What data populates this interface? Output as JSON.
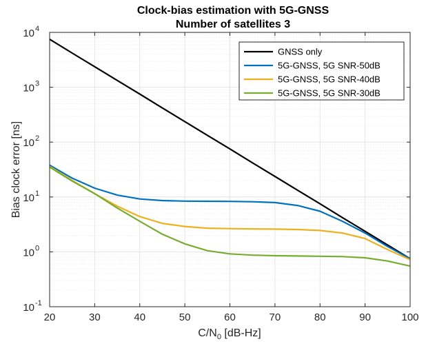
{
  "chart_data": {
    "type": "line",
    "title": "Clock-bias estimation with 5G-GNSS",
    "subtitle": "Number of satellites 3",
    "xlabel_main": "C/N",
    "xlabel_sub": "0",
    "xlabel_unit": " [dB-Hz]",
    "ylabel": "Bias clock error [ns]",
    "xlim": [
      20,
      100
    ],
    "ylim": [
      0.1,
      10000
    ],
    "yscale": "log",
    "grid": true,
    "legend_position": "top-right",
    "x_ticks": [
      20,
      30,
      40,
      50,
      60,
      70,
      80,
      90,
      100
    ],
    "y_ticks": [
      {
        "base": "10",
        "exp": "-1",
        "value": 0.1
      },
      {
        "base": "10",
        "exp": "0",
        "value": 1
      },
      {
        "base": "10",
        "exp": "1",
        "value": 10
      },
      {
        "base": "10",
        "exp": "2",
        "value": 100
      },
      {
        "base": "10",
        "exp": "3",
        "value": 1000
      },
      {
        "base": "10",
        "exp": "4",
        "value": 10000
      }
    ],
    "x": [
      20,
      25,
      30,
      35,
      40,
      45,
      50,
      55,
      60,
      65,
      70,
      75,
      80,
      85,
      90,
      95,
      100
    ],
    "series": [
      {
        "name": "GNSS only",
        "color": "#000000",
        "values": [
          7500,
          4200,
          2370,
          1330,
          750,
          420,
          237,
          133,
          75,
          42,
          23.7,
          13.3,
          7.5,
          4.2,
          2.37,
          1.33,
          0.75
        ]
      },
      {
        "name": "5G-GNSS, 5G SNR-50dB",
        "color": "#0072BD",
        "values": [
          38,
          22,
          14.5,
          10.8,
          9.2,
          8.6,
          8.4,
          8.35,
          8.3,
          8.2,
          7.9,
          7.0,
          5.5,
          3.6,
          2.2,
          1.25,
          0.75
        ]
      },
      {
        "name": "5G-GNSS, 5G SNR-40dB",
        "color": "#EDB120",
        "values": [
          36,
          20,
          11.5,
          6.8,
          4.4,
          3.3,
          2.9,
          2.7,
          2.65,
          2.62,
          2.6,
          2.55,
          2.45,
          2.2,
          1.75,
          1.1,
          0.72
        ]
      },
      {
        "name": "5G-GNSS, 5G SNR-30dB",
        "color": "#77AC30",
        "values": [
          35,
          19.5,
          11.5,
          6.3,
          3.6,
          2.1,
          1.4,
          1.05,
          0.92,
          0.87,
          0.85,
          0.84,
          0.83,
          0.82,
          0.78,
          0.68,
          0.55
        ]
      }
    ]
  }
}
